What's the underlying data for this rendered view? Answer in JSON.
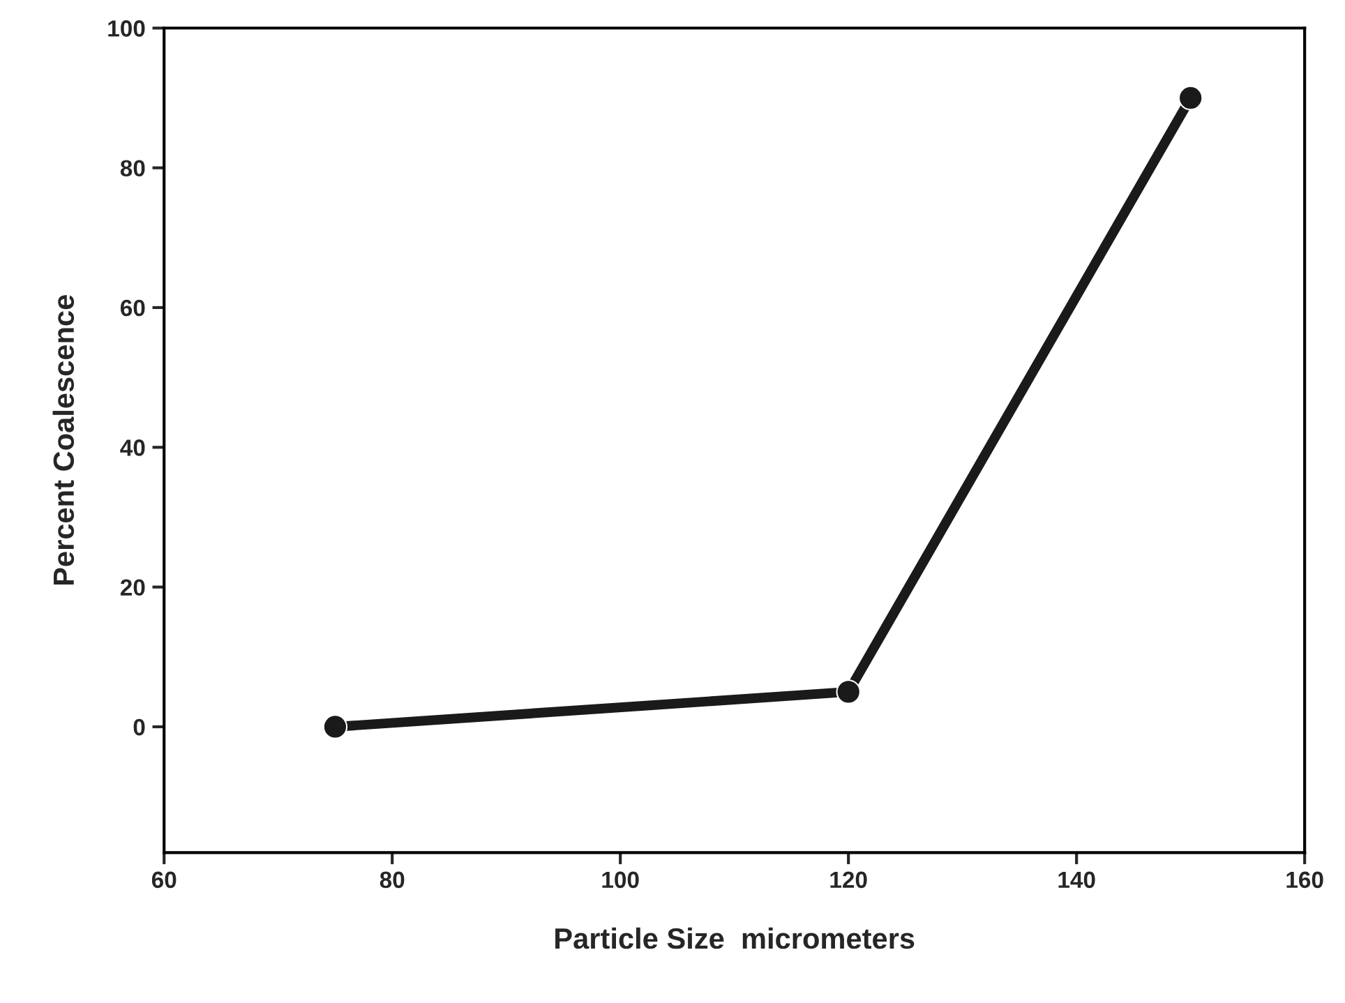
{
  "chart_data": {
    "type": "line",
    "xlabel": "Particle Size  micrometers",
    "ylabel": "Percent Coalescence",
    "x": [
      75,
      120,
      150
    ],
    "series": [
      {
        "color": "#1a1a1a",
        "values": [
          0,
          5,
          90
        ]
      }
    ],
    "xlim": [
      60,
      160
    ],
    "xticks": [
      60,
      80,
      100,
      120,
      140,
      160
    ],
    "ylim": [
      -18,
      100
    ],
    "yticks": [
      0,
      20,
      40,
      60,
      80,
      100
    ],
    "marker": "circle",
    "line_style": "solid",
    "grid": false,
    "legend": false
  }
}
